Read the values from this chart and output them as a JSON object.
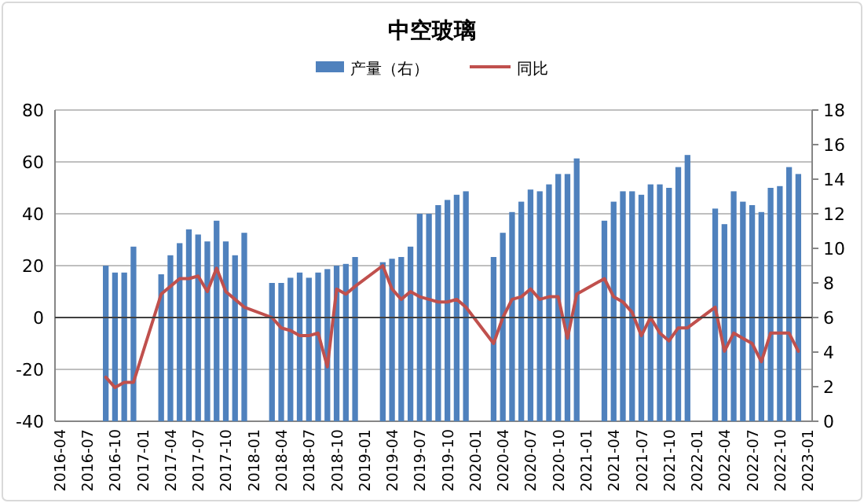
{
  "chart_data": {
    "type": "bar",
    "title": "中空玻璃",
    "categories": [
      "2016-04",
      null,
      null,
      "2016-07",
      null,
      null,
      "2016-10",
      null,
      null,
      "2017-01",
      null,
      null,
      "2017-04",
      null,
      null,
      "2017-07",
      null,
      null,
      "2017-10",
      null,
      null,
      "2018-01",
      null,
      null,
      "2018-04",
      null,
      null,
      "2018-07",
      null,
      null,
      "2018-10",
      null,
      null,
      "2019-01",
      null,
      null,
      "2019-04",
      null,
      null,
      "2019-07",
      null,
      null,
      "2019-10",
      null,
      null,
      "2020-01",
      null,
      null,
      "2020-04",
      null,
      null,
      "2020-07",
      null,
      null,
      "2020-10",
      null,
      null,
      "2021-01",
      null,
      null,
      "2021-04",
      null,
      null,
      "2021-07",
      null,
      null,
      "2021-10",
      null,
      null,
      "2022-01",
      null,
      null,
      "2022-04",
      null,
      null,
      "2022-07",
      null,
      null,
      "2022-10",
      null,
      null,
      "2023-01"
    ],
    "series": [
      {
        "name": "产量（右）",
        "axis": "y2",
        "color": "#4f81bd",
        "values": [
          null,
          null,
          null,
          null,
          null,
          9.0,
          8.6,
          8.6,
          10.1,
          null,
          null,
          8.5,
          9.6,
          10.3,
          11.1,
          10.8,
          10.4,
          11.6,
          10.4,
          9.6,
          10.9,
          null,
          null,
          8.0,
          8.0,
          8.3,
          8.6,
          8.3,
          8.6,
          8.8,
          9.0,
          9.1,
          9.5,
          null,
          null,
          9.2,
          9.4,
          9.5,
          10.1,
          12.0,
          12.0,
          12.5,
          12.8,
          13.1,
          13.3,
          null,
          null,
          9.5,
          10.9,
          12.1,
          12.7,
          13.4,
          13.3,
          13.7,
          14.3,
          14.3,
          15.2,
          null,
          null,
          11.6,
          12.7,
          13.3,
          13.3,
          13.1,
          13.7,
          13.7,
          13.5,
          14.7,
          15.4,
          null,
          null,
          12.3,
          11.4,
          13.3,
          12.7,
          12.5,
          12.1,
          13.5,
          13.6,
          14.7,
          14.3,
          null
        ]
      },
      {
        "name": "同比",
        "type": "line",
        "color": "#c0504d",
        "values": [
          null,
          null,
          null,
          null,
          null,
          -23,
          -27,
          -25,
          -25,
          null,
          null,
          9,
          12,
          15,
          15,
          16,
          10,
          19,
          10,
          7,
          4,
          null,
          null,
          0,
          -4,
          -5,
          -7,
          -7,
          -6,
          -19,
          11,
          9,
          12,
          null,
          null,
          20,
          11,
          7,
          10,
          8,
          7,
          6,
          6,
          7,
          4,
          null,
          null,
          -10,
          0,
          7,
          8,
          11,
          7,
          8,
          8,
          -8,
          9,
          null,
          null,
          15,
          8,
          6,
          2,
          -7,
          0,
          -6,
          -9,
          -4,
          -4,
          null,
          null,
          4,
          -13,
          -6,
          -8,
          -10,
          -17,
          -6,
          -6,
          -6,
          -13,
          null
        ]
      }
    ],
    "ylim": [
      -40,
      80
    ],
    "yticks": [
      -40,
      -20,
      0,
      20,
      40,
      60,
      80
    ],
    "y2lim": [
      0,
      18
    ],
    "y2ticks": [
      0,
      2,
      4,
      6,
      8,
      10,
      12,
      14,
      16,
      18
    ],
    "grid": "y",
    "legend": "top"
  }
}
